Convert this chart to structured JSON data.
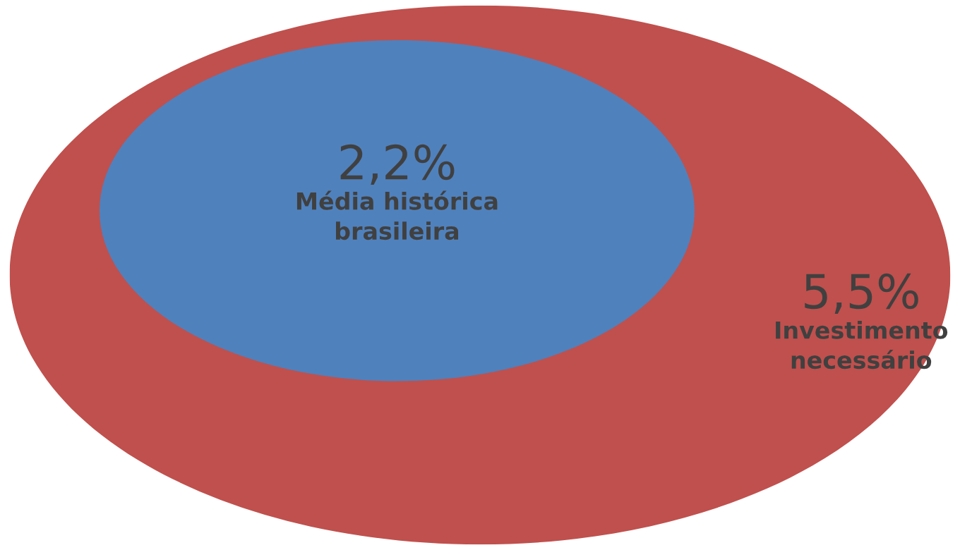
{
  "chart_data": {
    "type": "other",
    "categories": [
      "Investimento\nnecessário",
      "Média histórica\nbrasileira"
    ],
    "values": [
      5.5,
      2.2
    ],
    "value_labels": [
      "5,5%",
      "2,2%"
    ],
    "colors": [
      "#c0504d",
      "#4f81bd"
    ]
  }
}
